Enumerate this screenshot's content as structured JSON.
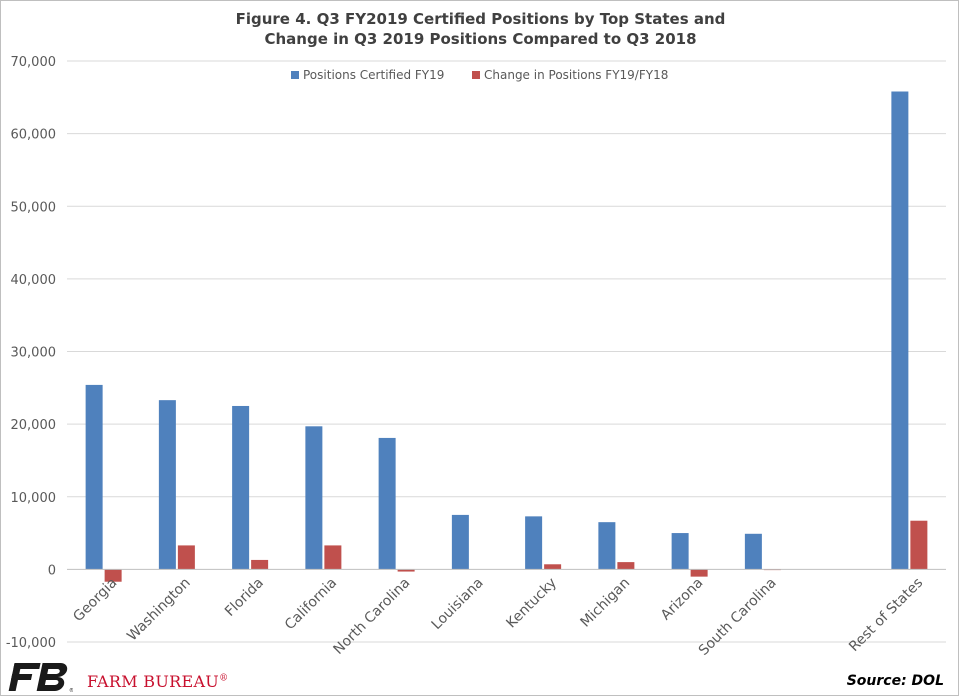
{
  "title_line1": "Figure 4. Q3 FY2019 Certified Positions by Top States and",
  "title_line2": "Change in Q3 2019 Positions Compared to Q3 2018",
  "footer": {
    "brand": "FARM BUREAU",
    "brand_mark": "®",
    "source": "Source: DOL"
  },
  "chart_data": {
    "type": "bar",
    "title": "Figure 4. Q3 FY2019 Certified Positions by Top States and Change in Q3 2019 Positions Compared to Q3 2018",
    "categories": [
      "Georgia",
      "Washington",
      "Florida",
      "California",
      "North Carolina",
      "Louisiana",
      "Kentucky",
      "Michigan",
      "Arizona",
      "South Carolina",
      "",
      "Rest of States"
    ],
    "series": [
      {
        "name": "Positions Certified FY19",
        "color": "#4f81bd",
        "values": [
          25400,
          23300,
          22500,
          19700,
          18100,
          7500,
          7300,
          6500,
          5000,
          4900,
          null,
          65800
        ]
      },
      {
        "name": "Change in Positions FY19/FY18",
        "color": "#c0504d",
        "values": [
          -1700,
          3300,
          1300,
          3300,
          -300,
          0,
          700,
          1000,
          -1000,
          -100,
          null,
          6700
        ]
      }
    ],
    "ylim": [
      -10000,
      70000
    ],
    "yticks": [
      -10000,
      0,
      10000,
      20000,
      30000,
      40000,
      50000,
      60000,
      70000
    ],
    "ytick_labels": [
      "-10,000",
      "0",
      "10,000",
      "20,000",
      "30,000",
      "40,000",
      "50,000",
      "60,000",
      "70,000"
    ],
    "grid": true,
    "legend_position": "top-center",
    "xlabel": "",
    "ylabel": ""
  }
}
